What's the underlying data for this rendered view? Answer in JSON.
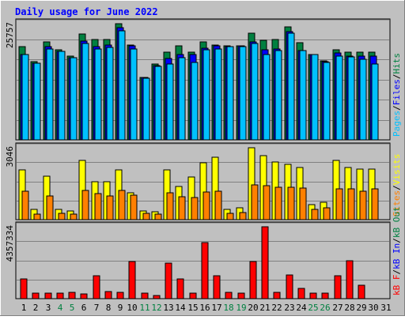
{
  "chart_data": {
    "type": "bar",
    "title": "Daily usage for June 2022",
    "categories": [
      "1",
      "2",
      "3",
      "4",
      "5",
      "6",
      "7",
      "8",
      "9",
      "10",
      "11",
      "12",
      "13",
      "14",
      "15",
      "16",
      "17",
      "18",
      "19",
      "20",
      "21",
      "22",
      "23",
      "24",
      "25",
      "26",
      "27",
      "28",
      "29",
      "30",
      "31"
    ],
    "weekend_days": [
      "4",
      "5",
      "11",
      "12",
      "18",
      "19",
      "25",
      "26"
    ],
    "panels": [
      {
        "id": "hits",
        "max_label": "25757",
        "ylim": [
          0,
          25757
        ],
        "series": [
          {
            "name": "Hits",
            "color": "#008040",
            "values": [
              20700,
              17400,
              21800,
              19900,
              18500,
              23500,
              22200,
              22200,
              25757,
              21000,
              13900,
              16800,
              19400,
              20800,
              19500,
              21800,
              21000,
              20800,
              20900,
              23700,
              22100,
              22300,
              25000,
              21500,
              19000,
              17600,
              20000,
              19500,
              19400,
              19400,
              null
            ]
          },
          {
            "name": "Files",
            "color": "#0000ff",
            "values": [
              19000,
              17000,
              20700,
              19600,
              18300,
              21900,
              20700,
              21100,
              24800,
              20800,
              13900,
              16400,
              18100,
              19000,
              18900,
              20300,
              20800,
              20700,
              20800,
              21800,
              20000,
              20100,
              24000,
              19800,
              19000,
              17400,
              19300,
              18600,
              18600,
              18600,
              null
            ]
          },
          {
            "name": "Pages",
            "color": "#00c0ff",
            "values": [
              19000,
              17000,
              20100,
              19600,
              18200,
              21300,
              20200,
              20500,
              24100,
              20200,
              13600,
              16300,
              16900,
              18300,
              17200,
              20000,
              20200,
              20600,
              20600,
              21300,
              19000,
              19800,
              23600,
              19800,
              18900,
              17100,
              18600,
              18400,
              17800,
              16800,
              null
            ]
          }
        ]
      },
      {
        "id": "visits",
        "max_label": "3046",
        "ylim": [
          0,
          3046
        ],
        "series": [
          {
            "name": "Visits",
            "color": "#ffff00",
            "values": [
              2100,
              420,
              1850,
              450,
              380,
              2520,
              1600,
              1620,
              2100,
              1150,
              370,
              330,
              2100,
              1390,
              1800,
              2400,
              2660,
              430,
              490,
              3046,
              2700,
              2450,
              2350,
              2200,
              650,
              720,
              2500,
              2200,
              2150,
              2150,
              null
            ]
          },
          {
            "name": "Sites",
            "color": "#ff8000",
            "values": [
              1200,
              240,
              1000,
              280,
              230,
              1250,
              1120,
              1000,
              1230,
              1040,
              270,
              230,
              1150,
              960,
              940,
              1160,
              1200,
              270,
              300,
              1470,
              1450,
              1370,
              1380,
              1330,
              420,
              490,
              1320,
              1300,
              1190,
              1300,
              null
            ]
          }
        ]
      },
      {
        "id": "kbytes",
        "max_label": "4357334",
        "ylim": [
          0,
          4357334
        ],
        "series": [
          {
            "name": "KBytes",
            "color": "#ff0000",
            "values": [
              1220000,
              330000,
              320000,
              330000,
              380000,
              310000,
              1400000,
              440000,
              380000,
              2250000,
              320000,
              190000,
              2150000,
              1220000,
              350000,
              3420000,
              1380000,
              390000,
              330000,
              2230000,
              4357334,
              380000,
              1440000,
              600000,
              330000,
              340000,
              1380000,
              2300000,
              830000,
              null,
              null
            ]
          }
        ]
      }
    ],
    "right_legend": [
      {
        "panel": "hits",
        "items": [
          {
            "text": "Pages",
            "color": "#00c0ff"
          },
          {
            "text": "Files",
            "color": "#0000ff"
          },
          {
            "text": "Hits",
            "color": "#008040"
          }
        ]
      },
      {
        "panel": "visits",
        "items": [
          {
            "text": "Sites",
            "color": "#ff8000"
          },
          {
            "text": "Visits",
            "color": "#ffff00"
          }
        ]
      },
      {
        "panel": "kbytes",
        "items": [
          {
            "text": "kB F",
            "color": "#ff0000"
          },
          {
            "text": "kB In",
            "color": "#0000ff"
          },
          {
            "text": "kB Out",
            "color": "#008040"
          }
        ]
      }
    ],
    "grid": true,
    "legend_position": "right"
  },
  "colors": {
    "background": "#c0c0c0",
    "panel_fill": "#c0c0c0",
    "title": "#0000ff",
    "weekday_label": "#000000",
    "weekend_label": "#008040"
  }
}
